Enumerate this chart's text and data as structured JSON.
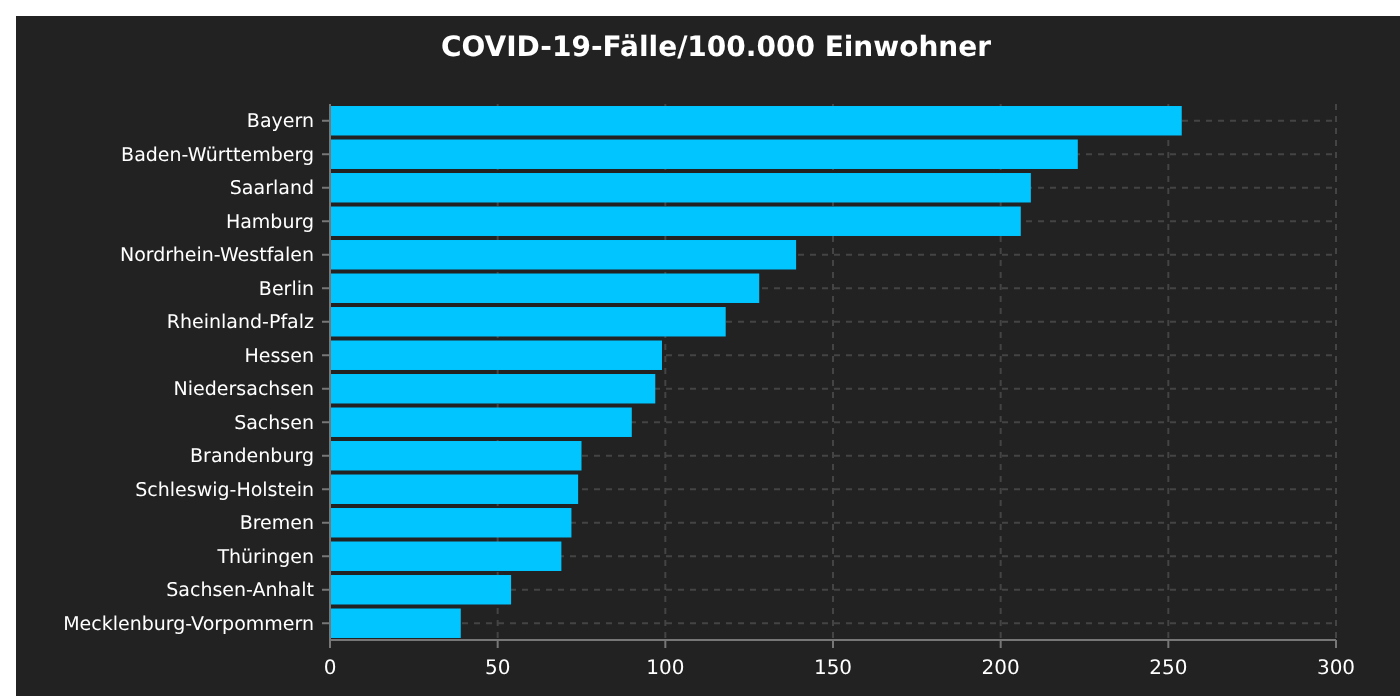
{
  "chart_data": {
    "type": "bar",
    "orientation": "horizontal",
    "title": "COVID-19-Fälle/100.000 Einwohner",
    "categories": [
      "Bayern",
      "Baden-Württemberg",
      "Saarland",
      "Hamburg",
      "Nordrhein-Westfalen",
      "Berlin",
      "Rheinland-Pfalz",
      "Hessen",
      "Niedersachsen",
      "Sachsen",
      "Brandenburg",
      "Schleswig-Holstein",
      "Bremen",
      "Thüringen",
      "Sachsen-Anhalt",
      "Mecklenburg-Vorpommern"
    ],
    "values": [
      254,
      223,
      209,
      206,
      139,
      128,
      118,
      99,
      97,
      90,
      75,
      74,
      72,
      69,
      54,
      39
    ],
    "color": "#00c5ff",
    "xlim": [
      0,
      300
    ],
    "xticks": [
      0,
      50,
      100,
      150,
      200,
      250,
      300
    ],
    "grid": true
  }
}
